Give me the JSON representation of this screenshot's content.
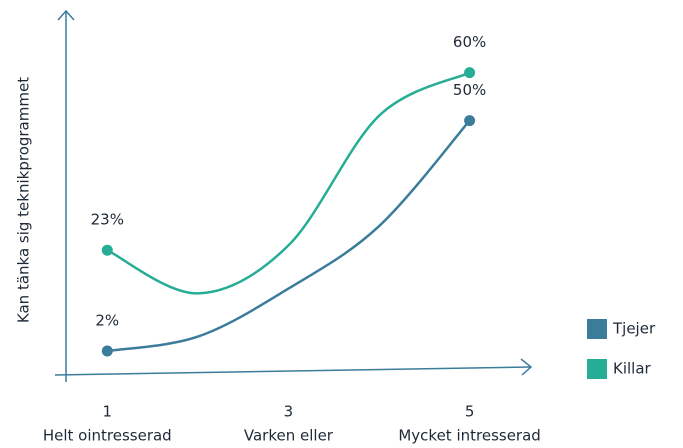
{
  "chart_data": {
    "type": "line",
    "y_label": "Kan tänka sig teknikprogrammet",
    "x": [
      1,
      2,
      3,
      4,
      5
    ],
    "xlim": [
      0.5,
      5.7
    ],
    "xticks": [
      1,
      3,
      5
    ],
    "xtick_labels": [
      "Helt ointresserad",
      "Varken eller",
      "Mycket intresserad"
    ],
    "ylim": [
      -3,
      72
    ],
    "series": [
      {
        "name": "Tjejer",
        "color": "#3b7c9b",
        "values": [
          2,
          5,
          15,
          28,
          50
        ],
        "value_labels": [
          "2%",
          null,
          null,
          null,
          "50%"
        ]
      },
      {
        "name": "Killar",
        "color": "#27ad96",
        "values": [
          23,
          14,
          24,
          51,
          60
        ],
        "value_labels": [
          "23%",
          null,
          null,
          null,
          "60%"
        ]
      }
    ]
  }
}
